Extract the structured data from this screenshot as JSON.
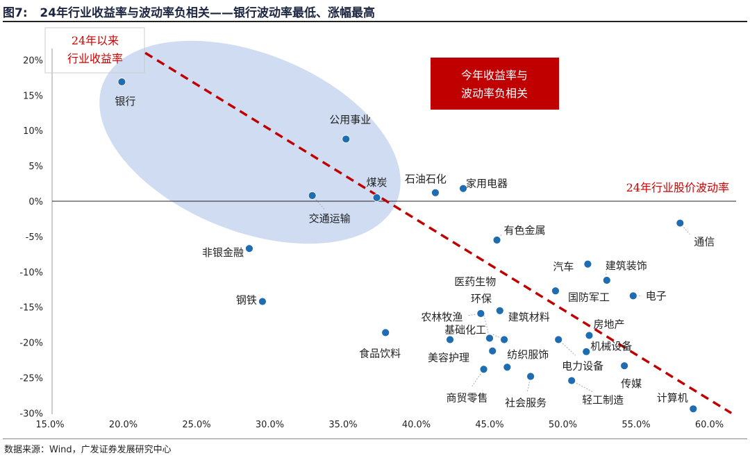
{
  "title": "图7:   24年行业收益率与波动率负相关——银行波动率最低、涨幅最高",
  "source": "数据来源：Wind，广发证券发展研究中心",
  "chart_data": {
    "type": "scatter",
    "xlabel": "24年行业股价波动率",
    "ylabel": "24年以来 行业收益率",
    "ylabel_lines": [
      "24年以来",
      "行业收益率"
    ],
    "xlim": [
      15,
      62
    ],
    "ylim": [
      -30,
      22
    ],
    "x_ticks": [
      "15.0%",
      "20.0%",
      "25.0%",
      "30.0%",
      "35.0%",
      "40.0%",
      "45.0%",
      "50.0%",
      "55.0%",
      "60.0%"
    ],
    "x_tick_values": [
      15,
      20,
      25,
      30,
      35,
      40,
      45,
      50,
      55,
      60
    ],
    "y_ticks": [
      "20%",
      "15%",
      "10%",
      "5%",
      "0%",
      "-5%",
      "-10%",
      "-15%",
      "-20%",
      "-25%",
      "-30%"
    ],
    "y_tick_values": [
      20,
      15,
      10,
      5,
      0,
      -5,
      -10,
      -15,
      -20,
      -25,
      -30
    ],
    "point_color": "#1f6cb0",
    "trend_color": "#c00000",
    "highlight_color": "#c8d6ee",
    "annotation_box": {
      "lines": [
        "今年收益率与",
        "波动率负相关"
      ],
      "bg": "#c00000"
    },
    "trend_line": {
      "from": [
        21.5,
        21
      ],
      "to": [
        61.5,
        -30
      ]
    },
    "points": [
      {
        "name": "银行",
        "x": 19.9,
        "y": 16.9
      },
      {
        "name": "公用事业",
        "x": 35.2,
        "y": 8.8
      },
      {
        "name": "煤炭",
        "x": 37.3,
        "y": 0.5
      },
      {
        "name": "交通运输",
        "x": 32.9,
        "y": 0.8
      },
      {
        "name": "石油石化",
        "x": 41.3,
        "y": 1.2
      },
      {
        "name": "家用电器",
        "x": 43.2,
        "y": 1.8
      },
      {
        "name": "有色金属",
        "x": 45.5,
        "y": -5.5
      },
      {
        "name": "通信",
        "x": 58.0,
        "y": -3.1
      },
      {
        "name": "非银金融",
        "x": 28.6,
        "y": -6.7
      },
      {
        "name": "汽车",
        "x": 51.7,
        "y": -8.9
      },
      {
        "name": "建筑装饰",
        "x": 53.0,
        "y": -11.2
      },
      {
        "name": "国防军工",
        "x": 49.5,
        "y": -12.7
      },
      {
        "name": "电子",
        "x": 54.8,
        "y": -13.4
      },
      {
        "name": "钢铁",
        "x": 29.5,
        "y": -14.2
      },
      {
        "name": "农林牧渔",
        "x": 44.4,
        "y": -15.9
      },
      {
        "name": "建筑材料",
        "x": 45.7,
        "y": -15.5
      },
      {
        "name": "食品饮料",
        "x": 37.9,
        "y": -18.6
      },
      {
        "name": "美容护理",
        "x": 42.3,
        "y": -19.6
      },
      {
        "name": "环保",
        "x": 45.0,
        "y": -19.4
      },
      {
        "name": "基础化工",
        "x": 46.0,
        "y": -19.6
      },
      {
        "name": "医药生物",
        "x": 45.2,
        "y": -21.2
      },
      {
        "name": "纺织服饰",
        "x": 46.2,
        "y": -23.5
      },
      {
        "name": "商贸零售",
        "x": 44.6,
        "y": -23.8
      },
      {
        "name": "社会服务",
        "x": 47.8,
        "y": -24.8
      },
      {
        "name": "电力设备",
        "x": 49.7,
        "y": -19.6
      },
      {
        "name": "房地产",
        "x": 51.8,
        "y": -19.0
      },
      {
        "name": "机械设备",
        "x": 51.6,
        "y": -21.3
      },
      {
        "name": "传媒",
        "x": 54.2,
        "y": -23.3
      },
      {
        "name": "轻工制造",
        "x": 50.6,
        "y": -25.4
      },
      {
        "name": "计算机",
        "x": 58.9,
        "y": -29.4
      }
    ]
  }
}
